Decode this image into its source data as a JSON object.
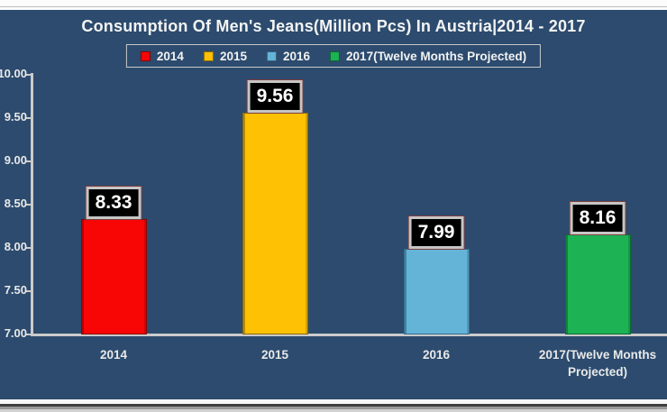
{
  "chart_data": {
    "type": "bar",
    "title": "Consumption Of Men's Jeans(Million Pcs) In Austria|2014 - 2017",
    "categories": [
      "2014",
      "2015",
      "2016",
      "2017(Twelve Months Projected)"
    ],
    "values": [
      8.33,
      9.56,
      7.99,
      8.16
    ],
    "data_labels": [
      "8.33",
      "9.56",
      "7.99",
      "8.16"
    ],
    "colors": [
      "#f80505",
      "#ffc103",
      "#64b4d8",
      "#1db355"
    ],
    "border_colors": [
      "#8a0606",
      "#8a6a00",
      "#2f6e8f",
      "#0c6b31"
    ],
    "legend": [
      {
        "label": "2014",
        "color": "#f80505"
      },
      {
        "label": "2015",
        "color": "#ffc103"
      },
      {
        "label": "2016",
        "color": "#64b4d8"
      },
      {
        "label": "2017(Twelve Months Projected)",
        "color": "#1db355"
      }
    ],
    "legend_position": "top",
    "grid": false,
    "xlabel": "",
    "ylabel": "",
    "ylim": [
      7.0,
      10.0
    ],
    "ytick_step": 0.5,
    "yticks": [
      "10.00",
      "9.50",
      "9.00",
      "8.50",
      "8.00",
      "7.50",
      "7.00"
    ],
    "background_color": "#2c4b6e",
    "value_label_style": {
      "text_color": "#ffffff",
      "fill": "#000000",
      "border": "#c6c6c6"
    }
  }
}
